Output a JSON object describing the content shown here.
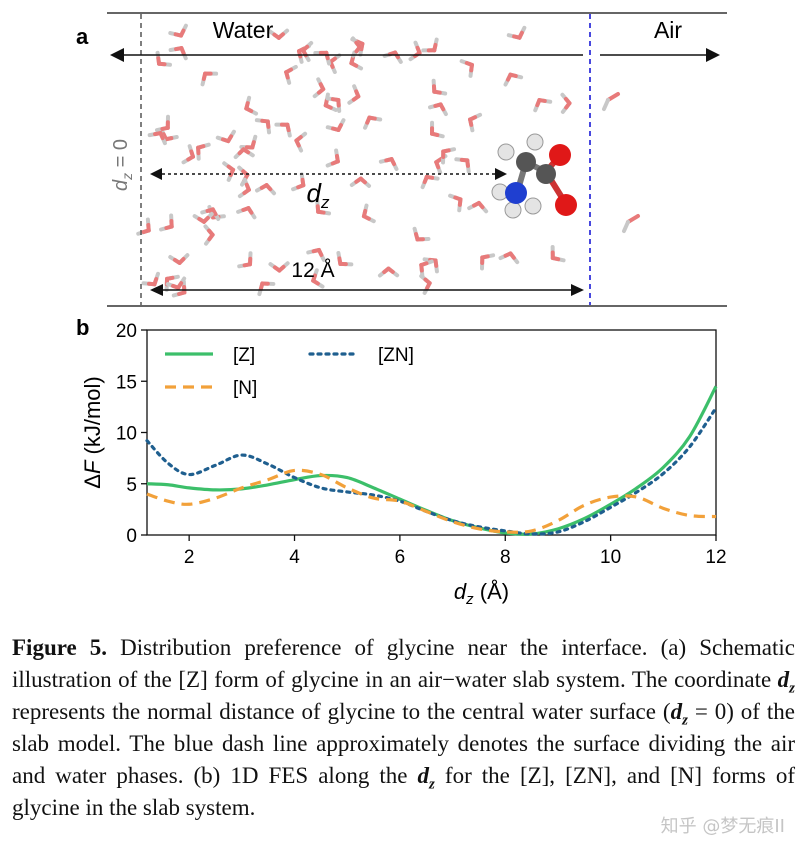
{
  "panel_a": {
    "label": "a",
    "water_label": "Water",
    "air_label": "Air",
    "dz0_label": "d",
    "dz0_sub": "z",
    "dz0_suffix": " = 0",
    "dz_label": "d",
    "dz_sub": "z",
    "slab_label": "12 Å",
    "colors": {
      "boundary": "#1a1ad6",
      "oxygen": "#e03030",
      "nitrogen": "#1f3fd0",
      "carbon": "#555555",
      "hydrogen": "#d8d8d8",
      "water_o": "#e87a7a",
      "water_h": "#c8c8c8"
    }
  },
  "panel_b": {
    "label": "b"
  },
  "chart_data": {
    "type": "line",
    "xlabel": "d_z (Å)",
    "ylabel": "ΔF (kJ/mol)",
    "xlim": [
      1.2,
      12
    ],
    "ylim": [
      0,
      20
    ],
    "xticks": [
      2,
      4,
      6,
      8,
      10,
      12
    ],
    "yticks": [
      0,
      5,
      10,
      15,
      20
    ],
    "grid": false,
    "legend_placement": "top-left",
    "series": [
      {
        "name": "[Z]",
        "color": "#3cbf6a",
        "dash": "solid",
        "x": [
          1.2,
          1.6,
          2.0,
          2.5,
          3.0,
          3.5,
          4.0,
          4.5,
          5.0,
          5.5,
          6.0,
          6.5,
          7.0,
          7.5,
          8.0,
          8.5,
          9.0,
          9.5,
          10.0,
          10.5,
          11.0,
          11.5,
          12.0
        ],
        "y": [
          5.0,
          4.9,
          4.6,
          4.4,
          4.5,
          4.9,
          5.4,
          5.8,
          5.6,
          4.6,
          3.5,
          2.4,
          1.4,
          0.7,
          0.2,
          0.1,
          0.6,
          1.6,
          3.0,
          4.6,
          6.6,
          9.6,
          14.5
        ]
      },
      {
        "name": "[ZN]",
        "color": "#1f5f8f",
        "dash": "dotted",
        "x": [
          1.2,
          1.6,
          2.0,
          2.5,
          3.0,
          3.5,
          4.0,
          4.5,
          5.0,
          5.5,
          6.0,
          6.5,
          7.0,
          7.5,
          8.0,
          8.5,
          9.0,
          9.5,
          10.0,
          10.5,
          11.0,
          11.5,
          12.0
        ],
        "y": [
          9.2,
          7.0,
          5.9,
          6.8,
          7.8,
          6.9,
          5.6,
          4.6,
          4.2,
          3.9,
          3.3,
          2.3,
          1.4,
          0.8,
          0.4,
          0.1,
          0.3,
          1.3,
          2.7,
          4.2,
          6.0,
          8.6,
          12.4
        ]
      },
      {
        "name": "[N]",
        "color": "#f2a13a",
        "dash": "dashed",
        "x": [
          1.2,
          1.6,
          2.0,
          2.5,
          3.0,
          3.5,
          4.0,
          4.5,
          5.0,
          5.5,
          6.0,
          6.5,
          7.0,
          7.5,
          8.0,
          8.5,
          9.0,
          9.5,
          10.0,
          10.5,
          11.0,
          11.5,
          12.0
        ],
        "y": [
          4.0,
          3.3,
          3.0,
          3.6,
          4.6,
          5.4,
          6.3,
          5.9,
          4.6,
          3.6,
          3.3,
          2.3,
          1.3,
          0.6,
          0.3,
          0.4,
          1.4,
          2.9,
          3.7,
          3.7,
          2.6,
          1.9,
          1.8
        ]
      }
    ]
  },
  "caption": {
    "figure_label": "Figure 5.",
    "p1": " Distribution preference of glycine near the interface. (a) Schematic illustration of the [Z] form of glycine in an air−water slab system. The coordinate ",
    "d": "d",
    "z": "z",
    "p2": " represents the normal distance of glycine to the central water surface (",
    "p3": " = 0) of the slab model. The blue dash line approximately denotes the surface dividing the air and water phases. (b) 1D FES along the ",
    "p4": " for the [Z], [ZN], and [N] forms of glycine in the slab system."
  },
  "watermark": "知乎 @梦无痕II"
}
